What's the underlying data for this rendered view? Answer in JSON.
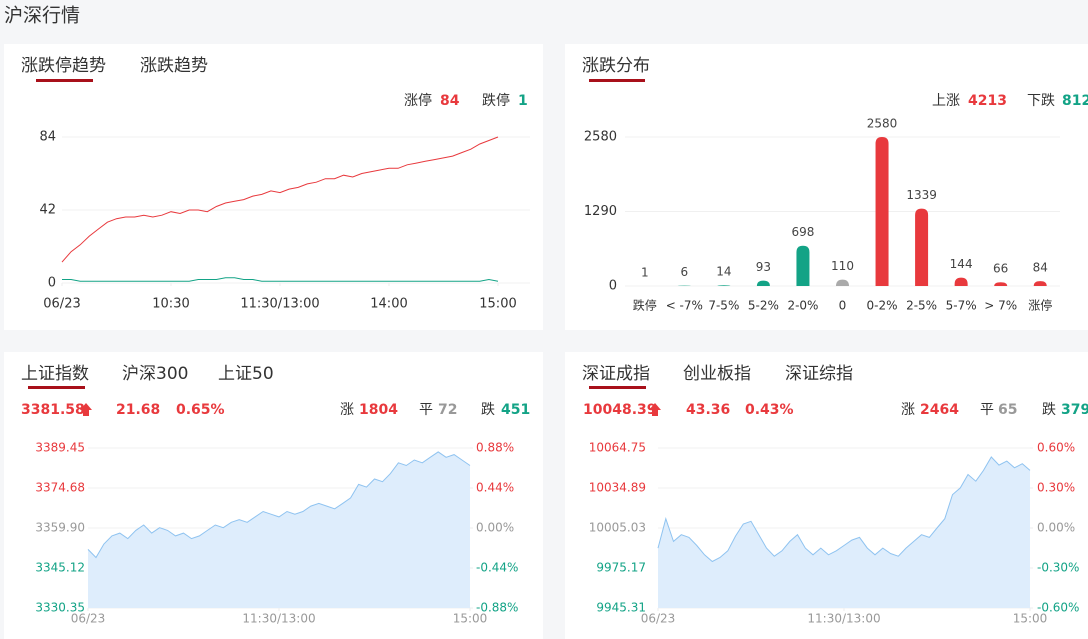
{
  "page_title": "沪深行情",
  "panels": [
    {
      "tabs": [
        "涨跌停趋势",
        "涨跌趋势"
      ],
      "legend_values": [
        84,
        1
      ]
    },
    {
      "tabs": [
        "涨跌分布"
      ],
      "stats": [
        {
          "label": "上涨",
          "value": 4213
        },
        {
          "label": "下跌",
          "value": 812
        }
      ]
    },
    {
      "tabs": [
        "上证指数",
        "沪深300",
        "上证50"
      ],
      "quote": {
        "price": 3381.58,
        "change": 21.68,
        "change_pct": "0.65%"
      },
      "breadth": [
        {
          "label": "涨",
          "value": 1804
        },
        {
          "label": "平",
          "value": 72
        },
        {
          "label": "跌",
          "value": 451
        }
      ]
    },
    {
      "tabs": [
        "深证成指",
        "创业板指",
        "深证综指"
      ],
      "quote": {
        "price": 10048.39,
        "change": 43.36,
        "change_pct": "0.43%"
      },
      "breadth": [
        {
          "label": "涨",
          "value": 2464
        },
        {
          "label": "平",
          "value": 65
        },
        {
          "label": "跌",
          "value": 379
        }
      ]
    }
  ],
  "chart_data": [
    {
      "type": "line",
      "grid": true,
      "x": [
        0,
        5,
        10,
        15,
        20,
        25,
        30,
        35,
        40,
        45,
        50,
        55,
        60,
        65,
        70,
        75,
        80,
        85,
        90,
        95,
        100,
        105,
        110,
        115,
        120,
        125,
        130,
        135,
        140,
        145,
        150,
        155,
        160,
        165,
        170,
        175,
        180,
        185,
        190,
        195,
        200,
        205,
        210,
        215,
        220,
        225,
        230,
        235,
        240
      ],
      "xlim": [
        0,
        240
      ],
      "xticks": [
        {
          "value": 0,
          "label": "06/23"
        },
        {
          "value": 60,
          "label": "10:30"
        },
        {
          "value": 120,
          "label": "11:30/13:00"
        },
        {
          "value": 180,
          "label": "14:00"
        },
        {
          "value": 240,
          "label": "15:00"
        }
      ],
      "ylim": [
        0,
        84
      ],
      "yticks": [
        0,
        42,
        84
      ],
      "series": [
        {
          "name": "涨停",
          "color": "#e8393d",
          "values": [
            12,
            18,
            22,
            27,
            31,
            35,
            37,
            38,
            38,
            39,
            38,
            39,
            41,
            40,
            42,
            42,
            41,
            44,
            46,
            47,
            48,
            50,
            51,
            53,
            52,
            54,
            55,
            57,
            58,
            60,
            60,
            62,
            61,
            63,
            64,
            65,
            66,
            66,
            68,
            69,
            70,
            71,
            72,
            73,
            75,
            77,
            80,
            82,
            84
          ]
        },
        {
          "name": "跌停",
          "color": "#13a386",
          "values": [
            2,
            2,
            1,
            1,
            1,
            1,
            1,
            1,
            1,
            1,
            1,
            1,
            1,
            1,
            1,
            2,
            2,
            2,
            3,
            3,
            2,
            2,
            1,
            1,
            1,
            1,
            1,
            1,
            1,
            1,
            1,
            1,
            1,
            1,
            1,
            1,
            1,
            1,
            1,
            1,
            1,
            1,
            1,
            1,
            1,
            1,
            1,
            2,
            1
          ]
        }
      ]
    },
    {
      "type": "bar",
      "grid": true,
      "categories": [
        "跌停",
        "< -7%",
        "7-5%",
        "5-2%",
        "2-0%",
        "0",
        "0-2%",
        "2-5%",
        "5-7%",
        "> 7%",
        "涨停"
      ],
      "values": [
        1,
        6,
        14,
        93,
        698,
        110,
        2580,
        1339,
        144,
        66,
        84
      ],
      "colors": [
        "#13a386",
        "#13a386",
        "#13a386",
        "#13a386",
        "#13a386",
        "#aaaaaa",
        "#e8393d",
        "#e8393d",
        "#e8393d",
        "#e8393d",
        "#e8393d"
      ],
      "ylim": [
        0,
        2580
      ],
      "yticks": [
        0,
        1290,
        2580
      ]
    },
    {
      "type": "area",
      "grid": true,
      "color": "#8fc3f0",
      "x": [
        0,
        5,
        10,
        15,
        20,
        25,
        30,
        35,
        40,
        45,
        50,
        55,
        60,
        65,
        70,
        75,
        80,
        85,
        90,
        95,
        100,
        105,
        110,
        115,
        120,
        125,
        130,
        135,
        140,
        145,
        150,
        155,
        160,
        165,
        170,
        175,
        180,
        185,
        190,
        195,
        200,
        205,
        210,
        215,
        220,
        225,
        230,
        235,
        240
      ],
      "xlim": [
        0,
        240
      ],
      "xticks": [
        {
          "value": 0,
          "label": "06/23"
        },
        {
          "value": 120,
          "label": "11:30/13:00"
        },
        {
          "value": 240,
          "label": "15:00"
        }
      ],
      "values": [
        3352,
        3349,
        3354,
        3357,
        3358,
        3356,
        3359,
        3361,
        3358,
        3360,
        3359,
        3357,
        3358,
        3356,
        3357,
        3359,
        3361,
        3360,
        3362,
        3363,
        3362,
        3364,
        3366,
        3365,
        3364,
        3366,
        3365,
        3366,
        3368,
        3369,
        3368,
        3367,
        3369,
        3371,
        3376,
        3375,
        3378,
        3377,
        3380,
        3384,
        3383,
        3385,
        3384,
        3386,
        3388,
        3386,
        3387,
        3385,
        3383
      ],
      "ylim": [
        3330.35,
        3389.45
      ],
      "yticks": [
        3330.35,
        3345.12,
        {
          "value": 3359.9,
          "label": "3359.90"
        },
        3374.68,
        3389.45
      ],
      "y2lim": [
        -0.88,
        0.88
      ],
      "y2ticks": [
        {
          "value": -0.88,
          "label": "-0.88%"
        },
        {
          "value": -0.44,
          "label": "-0.44%"
        },
        {
          "value": 0,
          "label": "0.00%"
        },
        {
          "value": 0.44,
          "label": "0.44%"
        },
        {
          "value": 0.88,
          "label": "0.88%"
        }
      ]
    },
    {
      "type": "area",
      "grid": true,
      "color": "#8fc3f0",
      "x": [
        0,
        5,
        10,
        15,
        20,
        25,
        30,
        35,
        40,
        45,
        50,
        55,
        60,
        65,
        70,
        75,
        80,
        85,
        90,
        95,
        100,
        105,
        110,
        115,
        120,
        125,
        130,
        135,
        140,
        145,
        150,
        155,
        160,
        165,
        170,
        175,
        180,
        185,
        190,
        195,
        200,
        205,
        210,
        215,
        220,
        225,
        230,
        235,
        240
      ],
      "xlim": [
        0,
        240
      ],
      "xticks": [
        {
          "value": 0,
          "label": "06/23"
        },
        {
          "value": 120,
          "label": "11:30/13:00"
        },
        {
          "value": 240,
          "label": "15:00"
        }
      ],
      "values": [
        9990,
        10012,
        9995,
        10000,
        9998,
        9992,
        9985,
        9980,
        9983,
        9988,
        9999,
        10008,
        10010,
        10000,
        9990,
        9984,
        9988,
        9995,
        10000,
        9990,
        9985,
        9990,
        9985,
        9988,
        9992,
        9996,
        9998,
        9990,
        9985,
        9990,
        9986,
        9984,
        9990,
        9995,
        10000,
        9998,
        10005,
        10012,
        10030,
        10035,
        10045,
        10040,
        10048,
        10058,
        10052,
        10055,
        10050,
        10053,
        10048
      ],
      "ylim": [
        9945.31,
        10064.75
      ],
      "yticks": [
        9945.31,
        9975.17,
        10005.03,
        10034.89,
        10064.75
      ],
      "y2lim": [
        -0.6,
        0.6
      ],
      "y2ticks": [
        {
          "value": -0.6,
          "label": "-0.60%"
        },
        {
          "value": -0.3,
          "label": "-0.30%"
        },
        {
          "value": 0,
          "label": "0.00%"
        },
        {
          "value": 0.3,
          "label": "0.30%"
        },
        {
          "value": 0.6,
          "label": "0.60%"
        }
      ]
    }
  ]
}
